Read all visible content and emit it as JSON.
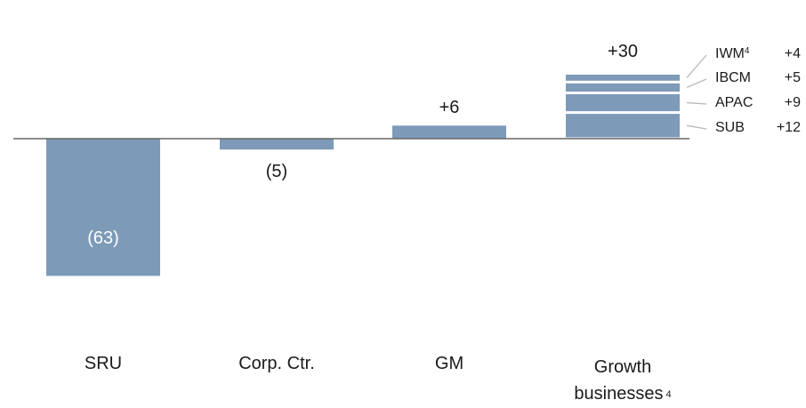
{
  "chart_data": {
    "type": "bar",
    "title": "",
    "xlabel": "",
    "ylabel": "",
    "categories": [
      "SRU",
      "Corp. Ctr.",
      "GM",
      "Growth businesses"
    ],
    "category_footnotes": [
      "",
      "",
      "",
      "4"
    ],
    "values": [
      -63,
      -5,
      6,
      30
    ],
    "value_labels": [
      "(63)",
      "(5)",
      "+6",
      "+30"
    ],
    "stacked_segments": {
      "category": "Growth businesses",
      "segments": [
        {
          "name": "SUB",
          "footnote": "",
          "value": 12,
          "label": "+12"
        },
        {
          "name": "APAC",
          "footnote": "",
          "value": 9,
          "label": "+9"
        },
        {
          "name": "IBCM",
          "footnote": "",
          "value": 5,
          "label": "+5"
        },
        {
          "name": "IWM",
          "footnote": "4",
          "value": 4,
          "label": "+4"
        }
      ]
    },
    "bar_color": "#7d9ab8",
    "baseline_color": "#666666",
    "grid": false
  }
}
